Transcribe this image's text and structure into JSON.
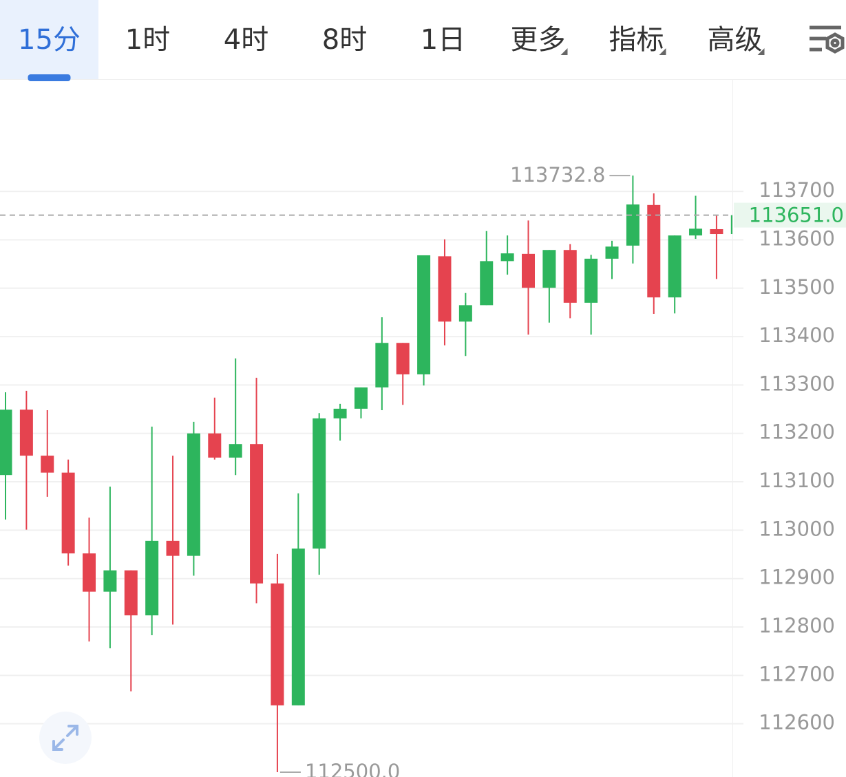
{
  "tabs": {
    "items": [
      "15分",
      "1时",
      "4时",
      "8时",
      "1日",
      "更多",
      "指标",
      "高级"
    ],
    "active": 0
  },
  "chart_data": {
    "type": "candlestick",
    "open": [
      113114,
      113249,
      113154,
      113119,
      112952,
      112873,
      112917,
      112824,
      112978,
      112947,
      113200,
      113150,
      113178,
      112890,
      112638,
      112962,
      113231,
      113251,
      113295,
      113387,
      113322,
      113566,
      113431,
      113465,
      113556,
      113571,
      113501,
      113579,
      113470,
      113561,
      113588,
      113672,
      113481,
      113609,
      113622,
      113612
    ],
    "high": [
      113285,
      113288,
      113248,
      113146,
      113026,
      113090,
      112917,
      113214,
      113154,
      113224,
      113274,
      113355,
      113315,
      112951,
      113076,
      113242,
      113261,
      113295,
      113440,
      113387,
      113568,
      113601,
      113490,
      113618,
      113609,
      113640,
      113579,
      113591,
      113569,
      113598,
      113732.8,
      113696,
      113609,
      113691,
      113650,
      113651
    ],
    "low": [
      113022,
      113001,
      113069,
      112927,
      112770,
      112756,
      112667,
      112783,
      112805,
      112906,
      113146,
      113114,
      112849,
      112500,
      112638,
      112908,
      113185,
      113231,
      113248,
      113259,
      113299,
      113382,
      113360,
      113465,
      113528,
      113404,
      113429,
      113438,
      113404,
      113519,
      113551,
      113447,
      113448,
      113602,
      113519,
      113612
    ],
    "close": [
      113249,
      113154,
      113119,
      112952,
      112873,
      112917,
      112824,
      112978,
      112947,
      113200,
      113150,
      113178,
      112890,
      112638,
      112962,
      113231,
      113251,
      113295,
      113387,
      113322,
      113568,
      113431,
      113465,
      113556,
      113572,
      113501,
      113579,
      113470,
      113561,
      113586,
      113673,
      113481,
      113609,
      113623,
      113612,
      113651
    ],
    "up_color": "#2db55d",
    "down_color": "#e5434f",
    "ylim": [
      112490,
      113932
    ],
    "yticks": [
      112600,
      112700,
      112800,
      112900,
      113000,
      113100,
      113200,
      113300,
      113400,
      113500,
      113600,
      113700
    ],
    "grid": true,
    "last_price": {
      "value": 113651,
      "label": "113651.0"
    },
    "max_marker": 113732.8,
    "min_marker": {
      "value": 112500,
      "label": "112500.0"
    }
  }
}
